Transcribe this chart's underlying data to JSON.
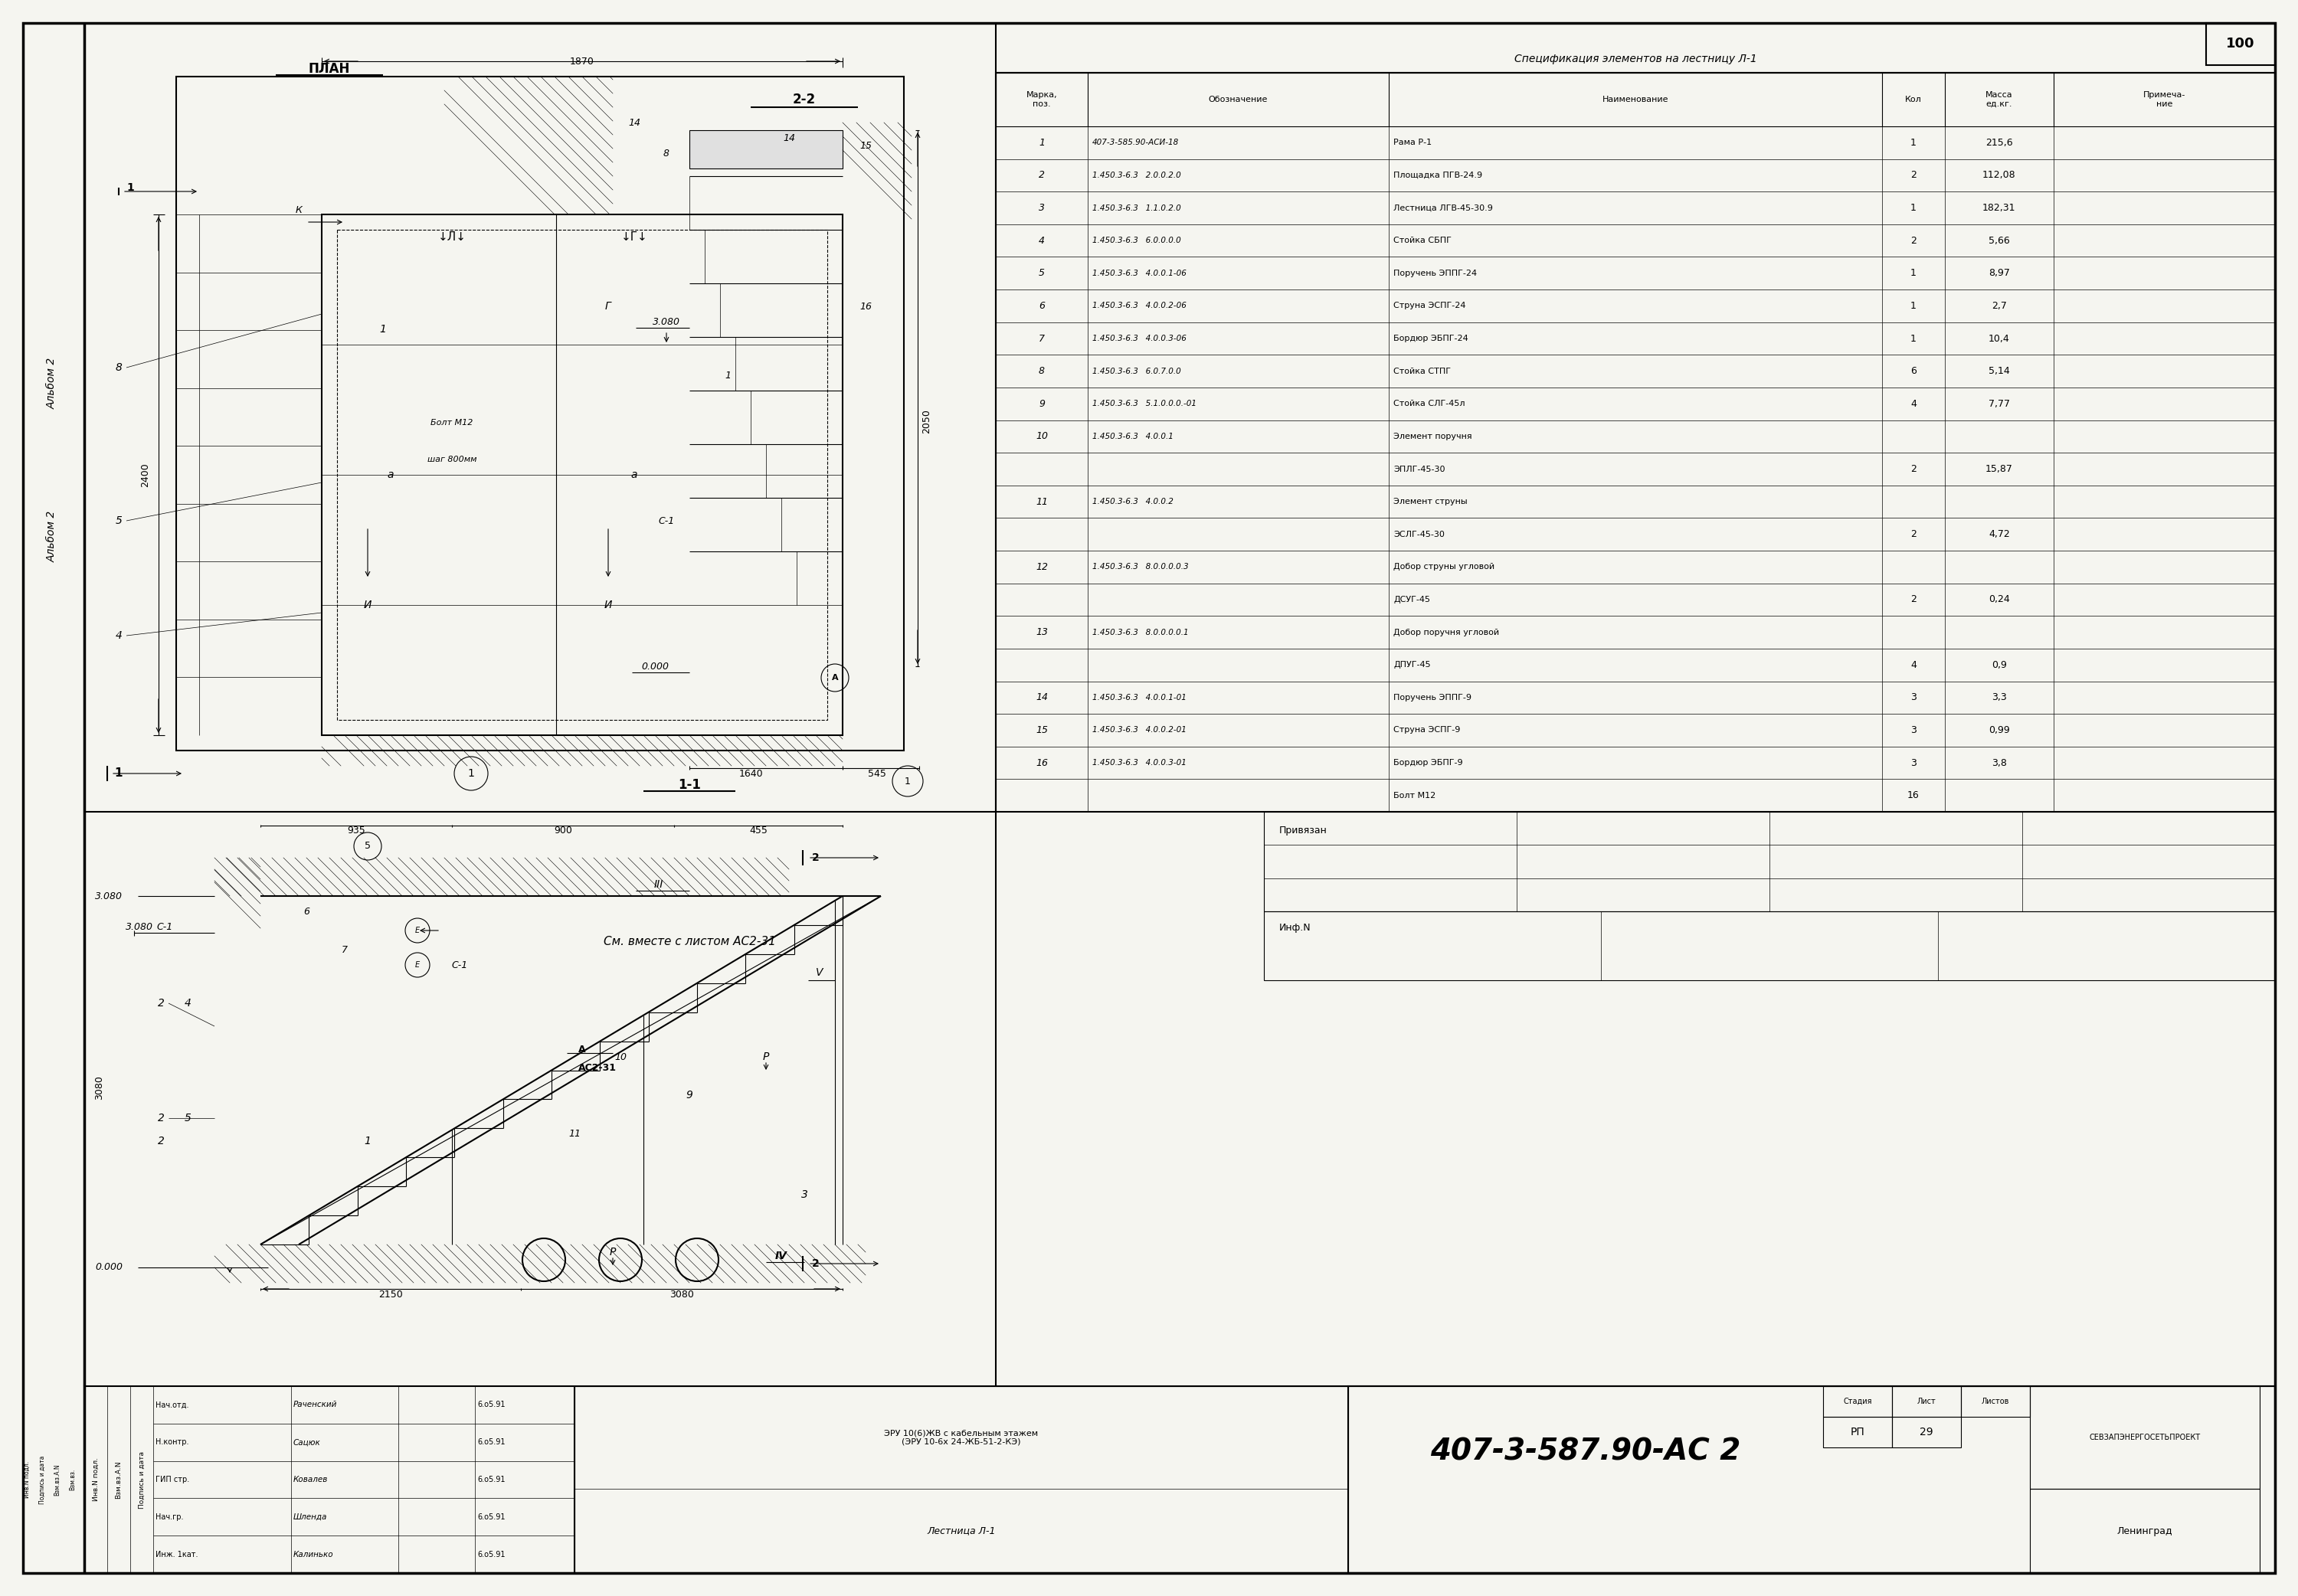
{
  "bg_color": "#f5f5f0",
  "title": "Спецификация элементов на лестницу Л-1",
  "spec_rows": [
    [
      "1",
      "407-3-585.90-АСИ-18",
      "Рама Р-1",
      "1",
      "215,6",
      ""
    ],
    [
      "2",
      "1.450.3-6.3   2.0.0.2.0",
      "Площадка ПГВ-24.9",
      "2",
      "112,08",
      ""
    ],
    [
      "3",
      "1.450.3-6.3   1.1.0.2.0",
      "Лестница ЛГВ-45-30.9",
      "1",
      "182,31",
      ""
    ],
    [
      "4",
      "1.450.3-6.3   6.0.0.0.0",
      "Стойка СБПГ",
      "2",
      "5,66",
      ""
    ],
    [
      "5",
      "1.450.3-6.3   4.0.0.1-06",
      "Поручень ЭППГ-24",
      "1",
      "8,97",
      ""
    ],
    [
      "6",
      "1.450.3-6.3   4.0.0.2-06",
      "Струна ЭСПГ-24",
      "1",
      "2,7",
      ""
    ],
    [
      "7",
      "1.450.3-6.3   4.0.0.3-06",
      "Бордюр ЭБПГ-24",
      "1",
      "10,4",
      ""
    ],
    [
      "8",
      "1.450.3-6.3   6.0.7.0.0",
      "Стойка СТПГ",
      "6",
      "5,14",
      ""
    ],
    [
      "9",
      "1.450.3-6.3   5.1.0.0.0.-01",
      "Стойка СЛГ-45л",
      "4",
      "7,77",
      ""
    ],
    [
      "10",
      "1.450.3-6.3   4.0.0.1",
      "Элемент поручня",
      "",
      "",
      ""
    ],
    [
      "",
      "",
      "ЭПЛГ-45-30",
      "2",
      "15,87",
      ""
    ],
    [
      "11",
      "1.450.3-6.3   4.0.0.2",
      "Элемент струны",
      "",
      "",
      ""
    ],
    [
      "",
      "",
      "ЭСЛГ-45-30",
      "2",
      "4,72",
      ""
    ],
    [
      "12",
      "1.450.3-6.3   8.0.0.0.0.3",
      "Добор струны угловой",
      "",
      "",
      ""
    ],
    [
      "",
      "",
      "ДСУГ-45",
      "2",
      "0,24",
      ""
    ],
    [
      "13",
      "1.450.3-6.3   8.0.0.0.0.1",
      "Добор поручня угловой",
      "",
      "",
      ""
    ],
    [
      "",
      "",
      "ДПУГ-45",
      "4",
      "0,9",
      ""
    ],
    [
      "14",
      "1.450.3-6.3   4.0.0.1-01",
      "Поручень ЭППГ-9",
      "3",
      "3,3",
      ""
    ],
    [
      "15",
      "1.450.3-6.3   4.0.0.2-01",
      "Струна ЭСПГ-9",
      "3",
      "0,99",
      ""
    ],
    [
      "16",
      "1.450.3-6.3   4.0.0.3-01",
      "Бордюр ЭБПГ-9",
      "3",
      "3,8",
      ""
    ],
    [
      "",
      "",
      "Болт M12",
      "16",
      "",
      ""
    ]
  ],
  "stamp_number": "407-3-587.90-АС 2",
  "stamp_subtitle": "ЭРУ 10(6)ЖВ с кабельным этажем\n(ЭРУ 10-6х 24-ЖБ-51-2-КЭ)",
  "stamp_name": "Лестница Л-1",
  "stamp_org": "СЕВЗАПЭНЕРГОСЕТЬПРОЕКТ",
  "stamp_city": "Ленинград",
  "stamp_stage": "РП",
  "stamp_sheet": "29",
  "album": "Альбом 2",
  "persons": [
    [
      "Нач.отд.",
      "Раченский",
      "6.о5.91"
    ],
    [
      "Н.контр.",
      "Сацюк",
      "6.о5.91"
    ],
    [
      "ГИП стр.",
      "Ковалев",
      "6.о5.91"
    ],
    [
      "Нач.гр.",
      "Шленда",
      "6.о5.91"
    ],
    [
      "Инж. 1кат.",
      "Калинько",
      "6.о5.91"
    ]
  ]
}
